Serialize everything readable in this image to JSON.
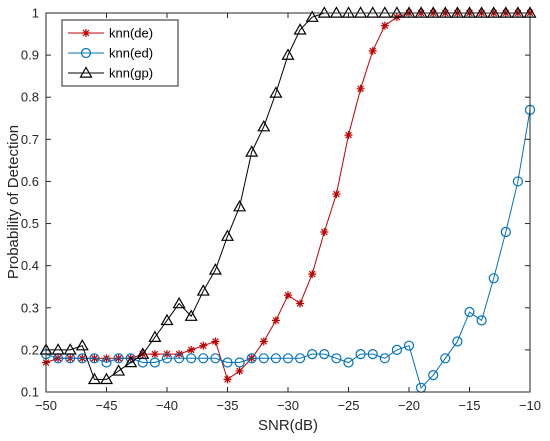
{
  "chart_data": {
    "type": "line",
    "title": "",
    "xlabel": "SNR(dB)",
    "ylabel": "Probability of Detection",
    "xlim": [
      -50,
      -10
    ],
    "ylim": [
      0.1,
      1
    ],
    "xticks": [
      -50,
      -45,
      -40,
      -35,
      -30,
      -25,
      -20,
      -15,
      -10
    ],
    "xtick_labels": [
      "−50",
      "−45",
      "−40",
      "−35",
      "−30",
      "−25",
      "−20",
      "−15",
      "−10"
    ],
    "yticks": [
      0.1,
      0.2,
      0.3,
      0.4,
      0.5,
      0.6,
      0.7,
      0.8,
      0.9,
      1
    ],
    "ytick_labels": [
      "0.1",
      "0.2",
      "0.3",
      "0.4",
      "0.5",
      "0.6",
      "0.7",
      "0.8",
      "0.9",
      "1"
    ],
    "grid": false,
    "legend_position": "top-left",
    "x": [
      -50,
      -49,
      -48,
      -47,
      -46,
      -45,
      -44,
      -43,
      -42,
      -41,
      -40,
      -39,
      -38,
      -37,
      -36,
      -35,
      -34,
      -33,
      -32,
      -31,
      -30,
      -29,
      -28,
      -27,
      -26,
      -25,
      -24,
      -23,
      -22,
      -21,
      -20,
      -19,
      -18,
      -17,
      -16,
      -15,
      -14,
      -13,
      -12,
      -11,
      -10
    ],
    "series": [
      {
        "name": "knn(de)",
        "color": "#c00000",
        "marker": "asterisk",
        "values": [
          0.17,
          0.18,
          0.18,
          0.18,
          0.18,
          0.18,
          0.18,
          0.18,
          0.19,
          0.19,
          0.19,
          0.19,
          0.2,
          0.21,
          0.22,
          0.13,
          0.15,
          0.18,
          0.22,
          0.27,
          0.33,
          0.31,
          0.38,
          0.48,
          0.57,
          0.71,
          0.82,
          0.91,
          0.97,
          0.99,
          1,
          1,
          1,
          1,
          1,
          1,
          1,
          1,
          1,
          1,
          1
        ]
      },
      {
        "name": "knn(ed)",
        "color": "#0072bd",
        "marker": "circle",
        "values": [
          0.19,
          0.18,
          0.18,
          0.18,
          0.18,
          0.17,
          0.18,
          0.18,
          0.17,
          0.17,
          0.18,
          0.18,
          0.18,
          0.18,
          0.18,
          0.17,
          0.17,
          0.18,
          0.18,
          0.18,
          0.18,
          0.18,
          0.19,
          0.19,
          0.18,
          0.17,
          0.19,
          0.19,
          0.18,
          0.2,
          0.21,
          0.11,
          0.14,
          0.18,
          0.22,
          0.29,
          0.27,
          0.37,
          0.48,
          0.6,
          0.77
        ]
      },
      {
        "name": "knn(gp)",
        "color": "#000000",
        "marker": "triangle",
        "values": [
          0.2,
          0.2,
          0.2,
          0.21,
          0.13,
          0.13,
          0.15,
          0.17,
          0.19,
          0.23,
          0.27,
          0.31,
          0.28,
          0.34,
          0.39,
          0.47,
          0.54,
          0.67,
          0.73,
          0.81,
          0.9,
          0.96,
          0.99,
          1,
          1,
          1,
          1,
          1,
          1,
          1,
          1,
          1,
          1,
          1,
          1,
          1,
          1,
          1,
          1,
          1,
          1
        ]
      }
    ]
  }
}
